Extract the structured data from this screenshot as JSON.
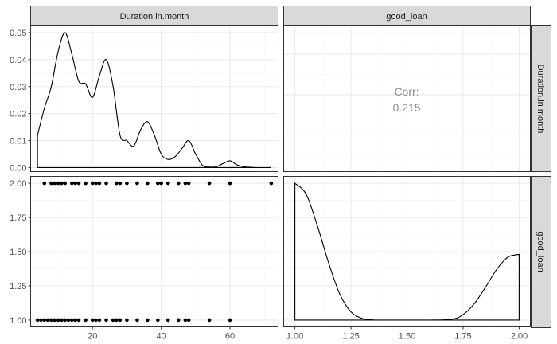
{
  "chart_data": {
    "type": "pairs-matrix",
    "variables": [
      "Duration.in.month",
      "good_loan"
    ],
    "panels": {
      "density_duration": {
        "type": "line",
        "xlim": [
          2,
          74
        ],
        "ylim": [
          -0.0015,
          0.0525
        ],
        "yticks": [
          0,
          0.01,
          0.02,
          0.03,
          0.04,
          0.05
        ],
        "ytick_labels": [
          "0.00",
          "0.01",
          "0.02",
          "0.03",
          "0.04",
          "0.05"
        ],
        "x": [
          4,
          6,
          8,
          10,
          12,
          14,
          16,
          18,
          20,
          22,
          24,
          26,
          28,
          30,
          32,
          34,
          36,
          38,
          40,
          42,
          44,
          46,
          48,
          50,
          52,
          54,
          56,
          58,
          60,
          62,
          64,
          66,
          68,
          70,
          72
        ],
        "y": [
          0.012,
          0.022,
          0.03,
          0.043,
          0.05,
          0.042,
          0.032,
          0.031,
          0.026,
          0.034,
          0.04,
          0.03,
          0.012,
          0.01,
          0.008,
          0.014,
          0.017,
          0.012,
          0.005,
          0.003,
          0.004,
          0.007,
          0.01,
          0.005,
          0.0008,
          0.0002,
          0.0003,
          0.0015,
          0.0025,
          0.001,
          0.0003,
          0.0001,
          0.0,
          0.0,
          0.0
        ]
      },
      "corr": {
        "label": "Corr:",
        "value": "0.215",
        "xlim": [
          0.95,
          2.05
        ],
        "ylim": [
          2,
          74
        ]
      },
      "scatter": {
        "type": "scatter",
        "xlim": [
          2,
          74
        ],
        "ylim": [
          0.95,
          2.05
        ],
        "yticks": [
          1.0,
          1.25,
          1.5,
          1.75,
          2.0
        ],
        "ytick_labels": [
          "1.00",
          "1.25",
          "1.50",
          "1.75",
          "2.00"
        ],
        "xticks": [
          20,
          40,
          60
        ],
        "xtick_labels": [
          "20",
          "40",
          "60"
        ],
        "x_good2": [
          6,
          8,
          9,
          10,
          11,
          12,
          14,
          15,
          16,
          18,
          20,
          21,
          22,
          24,
          27,
          28,
          30,
          33,
          36,
          39,
          40,
          42,
          45,
          47,
          48,
          54,
          60,
          72
        ],
        "x_good1": [
          4,
          5,
          6,
          7,
          8,
          9,
          10,
          11,
          12,
          13,
          14,
          15,
          16,
          18,
          20,
          21,
          22,
          24,
          26,
          27,
          28,
          30,
          33,
          36,
          39,
          42,
          45,
          47,
          48,
          54,
          60
        ]
      },
      "density_good": {
        "type": "line",
        "xlim": [
          0.95,
          2.05
        ],
        "ylim": [
          -0.05,
          1.05
        ],
        "xticks": [
          1.0,
          1.25,
          1.5,
          1.75,
          2.0
        ],
        "xtick_labels": [
          "1.00",
          "1.25",
          "1.50",
          "1.75",
          "2.00"
        ],
        "x": [
          1.0,
          1.05,
          1.1,
          1.15,
          1.2,
          1.25,
          1.3,
          1.35,
          1.4,
          1.5,
          1.6,
          1.7,
          1.75,
          1.8,
          1.85,
          1.9,
          1.95,
          2.0
        ],
        "y": [
          1.0,
          0.92,
          0.69,
          0.42,
          0.19,
          0.06,
          0.012,
          0.001,
          0.0,
          0.0,
          0.0,
          0.006,
          0.04,
          0.12,
          0.24,
          0.37,
          0.46,
          0.48
        ]
      }
    }
  },
  "strips": {
    "top": [
      "Duration.in.month",
      "good_loan"
    ],
    "right": [
      "Duration.in.month",
      "good_loan"
    ]
  }
}
